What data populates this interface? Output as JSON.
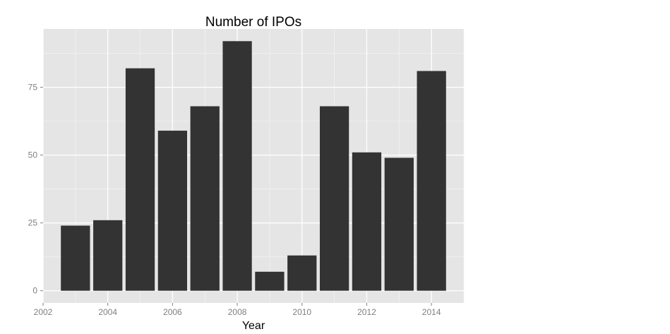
{
  "chart_data": {
    "type": "bar",
    "title": "Number of IPOs",
    "xlabel": "Year",
    "ylabel": "",
    "x": [
      2003,
      2004,
      2005,
      2006,
      2007,
      2008,
      2009,
      2010,
      2011,
      2012,
      2013,
      2014
    ],
    "values": [
      24,
      26,
      82,
      59,
      68,
      92,
      7,
      13,
      68,
      51,
      49,
      81
    ],
    "xlim": [
      2002,
      2015
    ],
    "ylim": [
      -4.5,
      96.5
    ],
    "x_ticks": [
      2002,
      2004,
      2006,
      2008,
      2010,
      2012,
      2014
    ],
    "y_ticks": [
      0,
      25,
      50,
      75
    ],
    "x_tick_labels": [
      "2002",
      "2004",
      "2006",
      "2008",
      "2010",
      "2012",
      "2014"
    ],
    "y_tick_labels": [
      "0",
      "25",
      "50",
      "75"
    ],
    "grid": true,
    "legend": "none",
    "colors": {
      "panel_background": "#e5e5e5",
      "grid_major": "#ffffff",
      "grid_minor": "#f2f2f2",
      "bar_fill": "#333333",
      "tick_text": "#7f7f7f",
      "tick_mark": "#7f7f7f"
    }
  }
}
